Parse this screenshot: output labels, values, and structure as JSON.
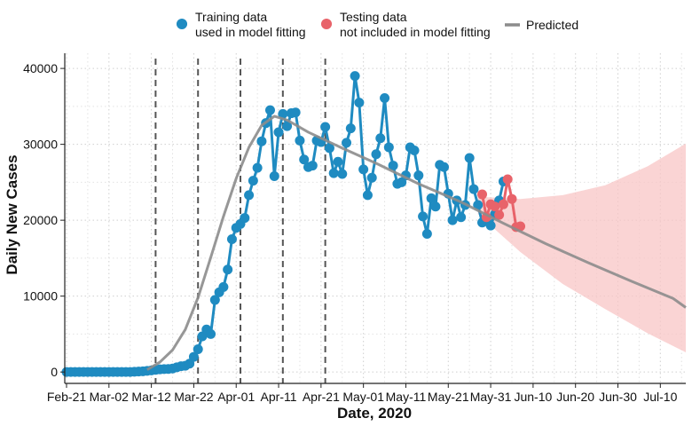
{
  "chart_data": {
    "type": "line",
    "xlabel": "Date, 2020",
    "ylabel": "Daily New Cases",
    "x_ticks": [
      "Feb-21",
      "Mar-02",
      "Mar-12",
      "Mar-22",
      "Apr-01",
      "Apr-11",
      "Apr-21",
      "May-01",
      "May-11",
      "May-21",
      "May-31",
      "Jun-10",
      "Jun-20",
      "Jun-30",
      "Jul-10"
    ],
    "y_ticks": [
      0,
      10000,
      20000,
      30000,
      40000
    ],
    "x_range": [
      "2020-02-21",
      "2020-07-16"
    ],
    "ylim": [
      -1500,
      42000
    ],
    "grid": "dotted",
    "legend_position": "top",
    "vertical_lines": [
      "2020-03-13",
      "2020-03-23",
      "2020-04-02",
      "2020-04-12",
      "2020-04-22"
    ],
    "vertical_lines_style": "dashed",
    "legend": [
      {
        "key": "training",
        "label_line1": "Training data",
        "label_line2": "used in model fitting",
        "color": "#1f8bc1"
      },
      {
        "key": "testing",
        "label_line1": "Testing data",
        "label_line2": "not included in model fitting",
        "color": "#e8636a"
      },
      {
        "key": "predicted",
        "label_line1": "Predicted",
        "label_line2": "",
        "color": "#8c8c8c"
      }
    ],
    "series": [
      {
        "name": "Training data used in model fitting",
        "start_date": "2020-02-21",
        "color": "#1f8bc1",
        "values": [
          0,
          0,
          0,
          0,
          0,
          0,
          0,
          0,
          0,
          0,
          0,
          0,
          0,
          0,
          0,
          10,
          40,
          70,
          100,
          150,
          210,
          280,
          350,
          380,
          400,
          460,
          620,
          770,
          820,
          1100,
          2000,
          3000,
          4700,
          5600,
          5000,
          9500,
          10500,
          11200,
          13500,
          17500,
          19000,
          19500,
          20300,
          23300,
          25200,
          26900,
          30400,
          32800,
          34500,
          25800,
          31600,
          34000,
          32400,
          34100,
          34200,
          30500,
          28000,
          27000,
          27200,
          30500,
          30300,
          32300,
          29500,
          26200,
          27700,
          26100,
          30200,
          32100,
          39000,
          35500,
          26700,
          23300,
          25600,
          28700,
          30800,
          36100,
          29600,
          27200,
          24800,
          25000,
          25900,
          29600,
          29200,
          25900,
          20500,
          18200,
          22900,
          21800,
          27300,
          27000,
          23500,
          20000,
          22600,
          20400,
          22000,
          28200,
          24100,
          22000,
          19700,
          20100,
          19300,
          20800,
          22600,
          25100
        ]
      },
      {
        "name": "Testing data not included in model fitting",
        "start_date": "2020-05-29",
        "color": "#e8636a",
        "values": [
          23400,
          20400,
          22100,
          21800,
          20700,
          22100,
          25400,
          22800,
          19100,
          19200
        ]
      },
      {
        "name": "Predicted",
        "color": "#8c8c8c",
        "points": [
          {
            "date": "2020-03-11",
            "value": 300
          },
          {
            "date": "2020-03-14",
            "value": 1300
          },
          {
            "date": "2020-03-17",
            "value": 2900
          },
          {
            "date": "2020-03-20",
            "value": 5600
          },
          {
            "date": "2020-03-23",
            "value": 9800
          },
          {
            "date": "2020-03-26",
            "value": 15100
          },
          {
            "date": "2020-03-29",
            "value": 20500
          },
          {
            "date": "2020-04-01",
            "value": 25500
          },
          {
            "date": "2020-04-04",
            "value": 29600
          },
          {
            "date": "2020-04-07",
            "value": 32500
          },
          {
            "date": "2020-04-10",
            "value": 33700
          },
          {
            "date": "2020-04-13",
            "value": 33200
          },
          {
            "date": "2020-04-18",
            "value": 31600
          },
          {
            "date": "2020-04-26",
            "value": 29500
          },
          {
            "date": "2020-05-04",
            "value": 27500
          },
          {
            "date": "2020-05-14",
            "value": 24800
          },
          {
            "date": "2020-05-24",
            "value": 22400
          },
          {
            "date": "2020-06-03",
            "value": 19600
          },
          {
            "date": "2020-06-13",
            "value": 16900
          },
          {
            "date": "2020-06-23",
            "value": 14400
          },
          {
            "date": "2020-07-03",
            "value": 12000
          },
          {
            "date": "2020-07-13",
            "value": 9700
          },
          {
            "date": "2020-07-16",
            "value": 8500
          }
        ]
      }
    ],
    "prediction_interval": {
      "color": "#f8c6c6",
      "points": [
        {
          "date": "2020-05-28",
          "lower": 20800,
          "upper": 23100
        },
        {
          "date": "2020-06-07",
          "lower": 15800,
          "upper": 22800
        },
        {
          "date": "2020-06-17",
          "lower": 11600,
          "upper": 23300
        },
        {
          "date": "2020-06-27",
          "lower": 8300,
          "upper": 24600
        },
        {
          "date": "2020-07-07",
          "lower": 5100,
          "upper": 27100
        },
        {
          "date": "2020-07-16",
          "lower": 2600,
          "upper": 30100
        }
      ]
    }
  }
}
